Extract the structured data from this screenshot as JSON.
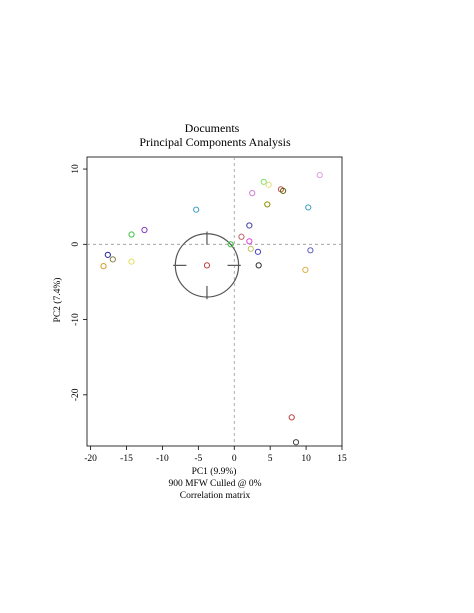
{
  "chart_data": {
    "type": "scatter",
    "title": "Documents",
    "subtitle": "Principal Components Analysis",
    "xlabel": "PC1 (9.9%)",
    "ylabel": "PC2 (7.4%)",
    "caption_lines": [
      "900 MFW  Culled @ 0%",
      "Correlation matrix"
    ],
    "xlim": [
      -20.5,
      15.0
    ],
    "ylim": [
      -26.8,
      11.6
    ],
    "x_ticks": [
      -20,
      -15,
      -10,
      -5,
      0,
      5,
      10,
      15
    ],
    "x_tick_labels": [
      "-20",
      "-15",
      "-10",
      "-5",
      "0",
      "5",
      "10",
      "15"
    ],
    "y_ticks": [
      -20,
      -10,
      0,
      10
    ],
    "y_tick_labels": [
      "-20",
      "-10",
      "0",
      "10"
    ],
    "grid": false,
    "reference_lines": {
      "x": 0,
      "y": 0,
      "style": "dashed"
    },
    "crosshair_circle": {
      "center": [
        -3.8,
        -2.8
      ],
      "radius": 4.3
    },
    "points": [
      {
        "x": 11.9,
        "y": 9.2,
        "color": "#e0a0e0"
      },
      {
        "x": 4.1,
        "y": 8.3,
        "color": "#80e060"
      },
      {
        "x": 4.8,
        "y": 7.9,
        "color": "#e0e080"
      },
      {
        "x": 6.5,
        "y": 7.3,
        "color": "#c05050"
      },
      {
        "x": 6.8,
        "y": 7.1,
        "color": "#606000"
      },
      {
        "x": 2.5,
        "y": 6.8,
        "color": "#d080d0"
      },
      {
        "x": 4.6,
        "y": 5.3,
        "color": "#909000"
      },
      {
        "x": -5.3,
        "y": 4.6,
        "color": "#40a0c0"
      },
      {
        "x": 10.3,
        "y": 4.9,
        "color": "#40a0c0"
      },
      {
        "x": 2.1,
        "y": 2.5,
        "color": "#4040a0"
      },
      {
        "x": -12.5,
        "y": 1.9,
        "color": "#8040c0"
      },
      {
        "x": -14.3,
        "y": 1.3,
        "color": "#40c040"
      },
      {
        "x": 1.0,
        "y": 1.0,
        "color": "#c06060"
      },
      {
        "x": 2.1,
        "y": 0.4,
        "color": "#e040e0"
      },
      {
        "x": -0.5,
        "y": 0.0,
        "color": "#40c040"
      },
      {
        "x": 2.3,
        "y": -0.6,
        "color": "#c0c060"
      },
      {
        "x": 3.3,
        "y": -1.0,
        "color": "#4040c0"
      },
      {
        "x": 10.6,
        "y": -0.8,
        "color": "#6060c0"
      },
      {
        "x": -17.6,
        "y": -1.4,
        "color": "#2020a0"
      },
      {
        "x": -16.9,
        "y": -2.0,
        "color": "#808040"
      },
      {
        "x": -14.3,
        "y": -2.3,
        "color": "#e0e060"
      },
      {
        "x": -18.2,
        "y": -2.9,
        "color": "#d0a030"
      },
      {
        "x": -3.8,
        "y": -2.8,
        "color": "#c04040"
      },
      {
        "x": 3.4,
        "y": -2.8,
        "color": "#303030"
      },
      {
        "x": 9.9,
        "y": -3.4,
        "color": "#e0b040"
      },
      {
        "x": 8.0,
        "y": -23.0,
        "color": "#c04040"
      },
      {
        "x": 8.6,
        "y": -26.3,
        "color": "#404040"
      }
    ]
  }
}
